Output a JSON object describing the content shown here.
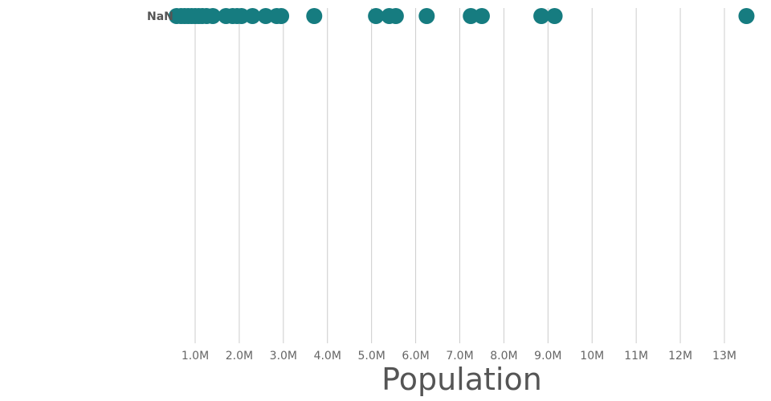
{
  "chart_data": {
    "type": "scatter",
    "xlabel": "Population",
    "ylabel": "",
    "xlim": [
      0,
      13000000
    ],
    "x_ticks": [
      1000000,
      2000000,
      3000000,
      4000000,
      5000000,
      6000000,
      7000000,
      8000000,
      9000000,
      10000000,
      11000000,
      12000000,
      13000000
    ],
    "x_tick_labels": [
      "1.0M",
      "2.0M",
      "3.0M",
      "4.0M",
      "5.0M",
      "6.0M",
      "7.0M",
      "8.0M",
      "9.0M",
      "10M",
      "11M",
      "12M",
      "13M"
    ],
    "grid": true,
    "categories": [
      "NaN"
    ],
    "series": [
      {
        "category": "NaN",
        "values": [
          580000,
          680000,
          760000,
          840000,
          920000,
          1000000,
          1080000,
          1160000,
          1260000,
          1400000,
          1700000,
          1850000,
          1950000,
          2050000,
          2300000,
          2600000,
          2850000,
          2950000,
          3700000,
          5100000,
          5400000,
          5550000,
          6250000,
          7250000,
          7500000,
          8850000,
          9150000,
          13500000
        ]
      }
    ],
    "colors": {
      "point": "#167c80",
      "grid": "#cccccc",
      "tick_text": "#666666",
      "title_text": "#555555"
    }
  }
}
